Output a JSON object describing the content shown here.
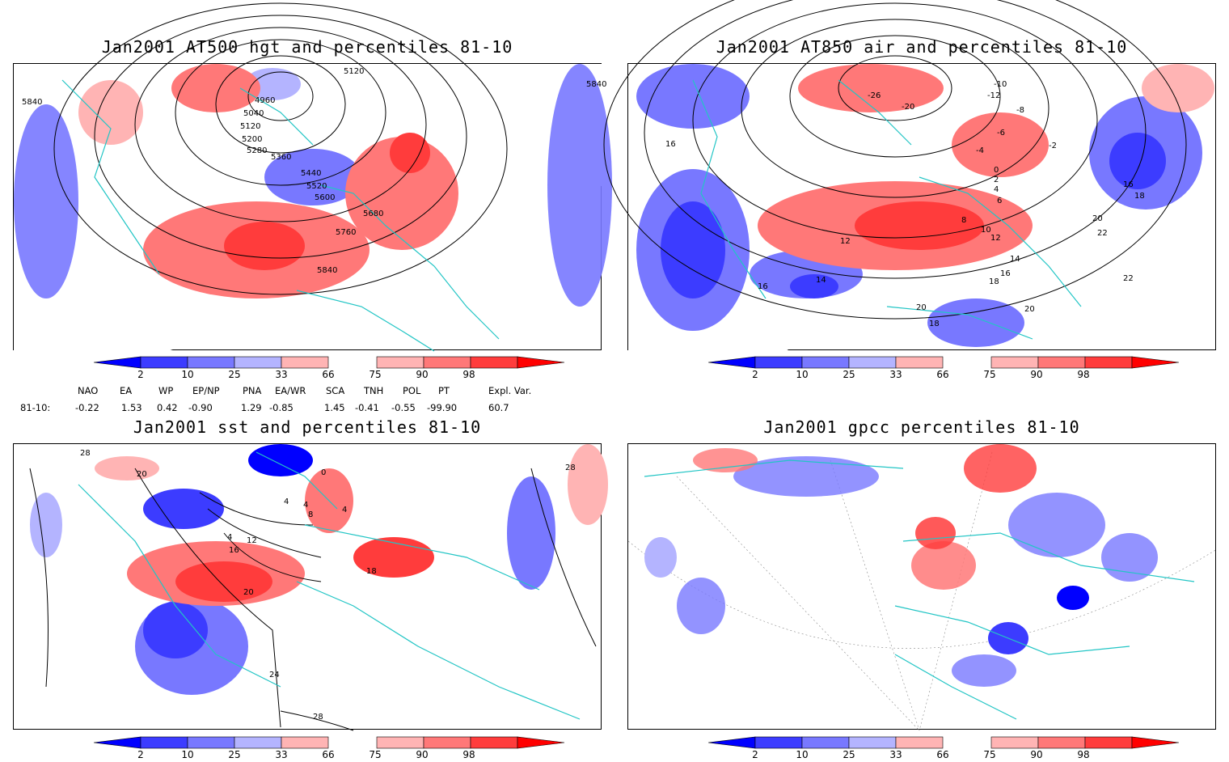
{
  "panels": [
    {
      "title": "Jan2001 AT500 hgt and percentiles 81-10",
      "contour_labels": [
        "5840",
        "5120",
        "4960",
        "5040",
        "5120",
        "5200",
        "5280",
        "5360",
        "5440",
        "5520",
        "5600",
        "5680",
        "5760",
        "5840",
        "5840"
      ]
    },
    {
      "title": "Jan2001 AT850 air and percentiles 81-10",
      "contour_labels": [
        "-26",
        "-20",
        "-12",
        "-10",
        "-8",
        "-6",
        "-4",
        "-2",
        "0",
        "2",
        "4",
        "6",
        "8",
        "10",
        "12",
        "12",
        "14",
        "14",
        "16",
        "16",
        "16",
        "16",
        "18",
        "18",
        "18",
        "20",
        "20",
        "20",
        "22",
        "22"
      ]
    },
    {
      "title": "Jan2001 sst and percentiles 81-10",
      "contour_labels": [
        "28",
        "20",
        "0",
        "4",
        "4",
        "8",
        "4",
        "4",
        "12",
        "16",
        "18",
        "20",
        "24",
        "28",
        "28"
      ]
    },
    {
      "title": "Jan2001 gpcc percentiles 81-10",
      "contour_labels": []
    }
  ],
  "colorbar": {
    "ticks": [
      "2",
      "10",
      "25",
      "33",
      "66",
      "75",
      "90",
      "98"
    ],
    "colors": [
      "#0000ff",
      "#3c3cff",
      "#7878ff",
      "#b4b4ff",
      "#ffb4b4",
      "#ff7878",
      "#ff3c3c",
      "#ff0000"
    ]
  },
  "indices": {
    "header": [
      "NAO",
      "EA",
      "WP",
      "EP/NP",
      "PNA",
      "EA/WR",
      "SCA",
      "TNH",
      "POL",
      "PT",
      "Expl. Var."
    ],
    "row_label": "81-10:",
    "values": [
      "-0.22",
      "1.53",
      "0.42",
      "-0.90",
      "1.29",
      "-0.85",
      "1.45",
      "-0.41",
      "-0.55",
      "-99.90",
      "60.7"
    ]
  }
}
